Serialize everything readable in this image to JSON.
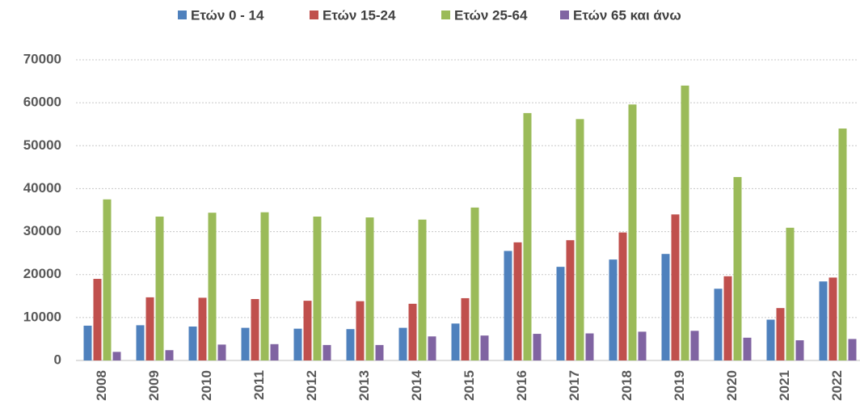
{
  "chart_data": {
    "type": "bar",
    "categories": [
      "2008",
      "2009",
      "2010",
      "2011",
      "2012",
      "2013",
      "2014",
      "2015",
      "2016",
      "2017",
      "2018",
      "2019",
      "2020",
      "2021",
      "2022"
    ],
    "series": [
      {
        "name": "Ετών 0 - 14",
        "color": "#4f81bd",
        "values": [
          8100,
          8200,
          7900,
          7600,
          7400,
          7300,
          7600,
          8600,
          25500,
          21800,
          23500,
          24800,
          16700,
          9500,
          18400
        ]
      },
      {
        "name": "Ετών 15-24",
        "color": "#c0504d",
        "values": [
          19000,
          14700,
          14600,
          14300,
          13900,
          13800,
          13200,
          14500,
          27500,
          28000,
          29800,
          34000,
          19600,
          12200,
          19300
        ]
      },
      {
        "name": "Ετών 25-64",
        "color": "#9bbb59",
        "values": [
          37500,
          33500,
          34400,
          34500,
          33500,
          33300,
          32800,
          35600,
          57600,
          56200,
          59600,
          64000,
          42700,
          30900,
          54000
        ]
      },
      {
        "name": "Ετών 65 και άνω",
        "color": "#8064a2",
        "values": [
          2000,
          2400,
          3700,
          3800,
          3600,
          3600,
          5600,
          5800,
          6200,
          6300,
          6700,
          6900,
          5300,
          4700,
          5000
        ]
      }
    ],
    "ylim": [
      0,
      70000
    ],
    "yticks": [
      0,
      10000,
      20000,
      30000,
      40000,
      50000,
      60000,
      70000
    ],
    "grid": true,
    "legend": "top"
  }
}
